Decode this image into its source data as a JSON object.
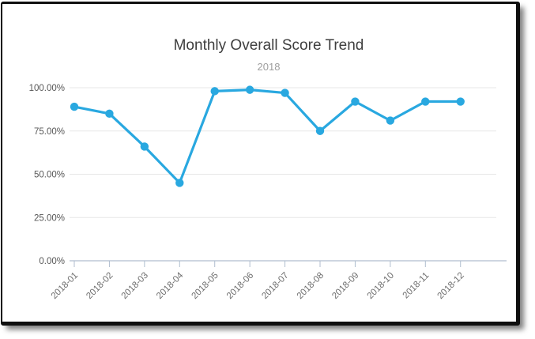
{
  "frame": {
    "border_color": "#0f0f0f"
  },
  "chart_data": {
    "type": "line",
    "title": "Monthly Overall Score Trend",
    "subtitle": "2018",
    "categories": [
      "2018-01",
      "2018-02",
      "2018-03",
      "2018-04",
      "2018-05",
      "2018-06",
      "2018-07",
      "2018-08",
      "2018-09",
      "2018-10",
      "2018-11",
      "2018-12"
    ],
    "values": [
      89,
      85,
      66,
      45,
      98,
      98.8,
      97,
      75,
      92,
      81,
      92,
      92
    ],
    "value_format": "percent",
    "ylim": [
      0,
      100
    ],
    "y_axis": {
      "tick_labels": [
        "100.00%",
        "75.00%",
        "50.00%",
        "25.00%",
        "0.00%"
      ],
      "tick_values": [
        100,
        75,
        50,
        25,
        0
      ]
    },
    "x_label_rotation_degrees": 45,
    "grid": true,
    "legend": "none",
    "colors": {
      "line": "#29a8e0",
      "point": "#29a8e0",
      "gridline": "#e7e7e7",
      "axis_line": "#b0becf",
      "title": "#3e3e3e",
      "subtitle": "#9e9e9e",
      "y_tick_label": "#575757",
      "x_tick_label": "#6e6e6e"
    }
  }
}
